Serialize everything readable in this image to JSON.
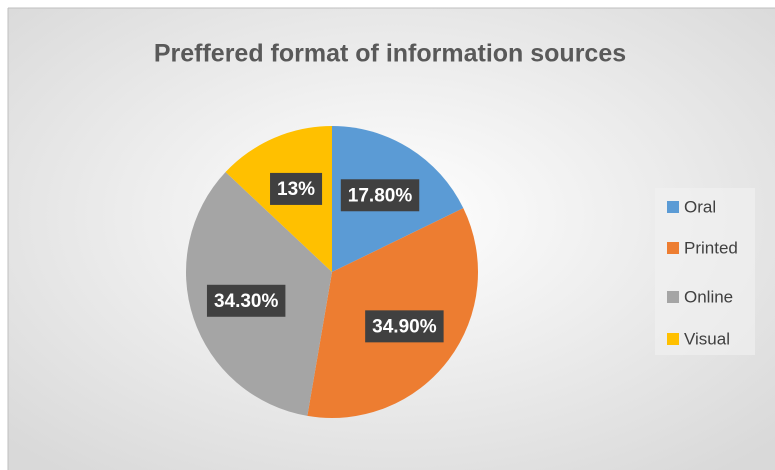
{
  "chart_data": {
    "type": "pie",
    "title": "Preffered format of information sources",
    "categories": [
      "Oral",
      "Printed",
      "Online",
      "Visual"
    ],
    "values": [
      17.8,
      34.9,
      34.3,
      13
    ],
    "value_labels": [
      "17.80%",
      "34.90%",
      "34.30%",
      "13%"
    ],
    "colors": [
      "#5b9bd5",
      "#ed7d31",
      "#a5a5a5",
      "#ffc000"
    ],
    "legend": "right"
  }
}
